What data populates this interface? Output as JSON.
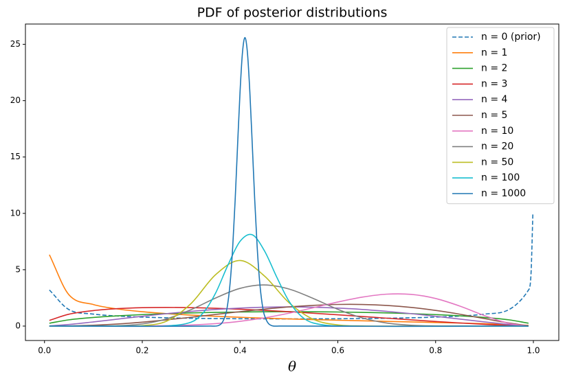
{
  "chart_data": {
    "type": "line",
    "title": "PDF of posterior distributions",
    "xlabel": "θ",
    "xlim": [
      -0.039,
      1.052
    ],
    "ylim": [
      -1.28,
      26.8
    ],
    "xticks": [
      {
        "value": 0,
        "label": "0.0"
      },
      {
        "value": 0.2,
        "label": "0.2"
      },
      {
        "value": 0.4,
        "label": "0.4"
      },
      {
        "value": 0.6,
        "label": "0.6"
      },
      {
        "value": 0.8,
        "label": "0.8"
      },
      {
        "value": 1,
        "label": "1.0"
      }
    ],
    "yticks": [
      0,
      5,
      10,
      15,
      20,
      25
    ],
    "grid": false,
    "legend": "upper right",
    "series": [
      {
        "name": "n = 0 (prior)",
        "color": "#1f77b4",
        "linestyle": "dashed",
        "x": [
          0.01,
          0.05,
          0.1,
          0.15,
          0.2,
          0.25,
          0.3,
          0.35,
          0.4,
          0.45,
          0.5,
          0.55,
          0.6,
          0.65,
          0.7,
          0.75,
          0.8,
          0.85,
          0.9,
          0.95,
          0.99,
          0.995,
          0.999
        ],
        "values": [
          3.2,
          1.461,
          1.061,
          0.891,
          0.796,
          0.735,
          0.695,
          0.667,
          0.65,
          0.64,
          0.637,
          0.64,
          0.65,
          0.667,
          0.695,
          0.735,
          0.796,
          0.891,
          1.061,
          1.461,
          3.2,
          4.51,
          10.07
        ]
      },
      {
        "name": "n = 1",
        "color": "#ff7f0e",
        "x": [
          0.01,
          0.05,
          0.1,
          0.15,
          0.2,
          0.25,
          0.3,
          0.35,
          0.4,
          0.45,
          0.5,
          0.55,
          0.6,
          0.65,
          0.7,
          0.75,
          0.8,
          0.85,
          0.9,
          0.95,
          0.99
        ],
        "values": [
          6.33,
          2.775,
          1.91,
          1.515,
          1.273,
          1.103,
          0.972,
          0.868,
          0.78,
          0.704,
          0.637,
          0.576,
          0.52,
          0.467,
          0.417,
          0.368,
          0.318,
          0.267,
          0.212,
          0.146,
          0.064
        ]
      },
      {
        "name": "n = 2",
        "color": "#2ca02c",
        "x": [
          0.01,
          0.05,
          0.1,
          0.15,
          0.2,
          0.25,
          0.3,
          0.35,
          0.4,
          0.45,
          0.5,
          0.55,
          0.6,
          0.65,
          0.7,
          0.75,
          0.8,
          0.85,
          0.9,
          0.95,
          0.99
        ],
        "values": [
          0.253,
          0.555,
          0.764,
          0.909,
          1.019,
          1.103,
          1.167,
          1.214,
          1.247,
          1.267,
          1.273,
          1.267,
          1.247,
          1.214,
          1.167,
          1.103,
          1.019,
          0.909,
          0.764,
          0.555,
          0.253
        ]
      },
      {
        "name": "n = 3",
        "color": "#d62728",
        "x": [
          0.01,
          0.05,
          0.1,
          0.15,
          0.2,
          0.25,
          0.3,
          0.35,
          0.4,
          0.45,
          0.5,
          0.55,
          0.6,
          0.65,
          0.7,
          0.75,
          0.8,
          0.85,
          0.9,
          0.95,
          0.99
        ],
        "values": [
          0.502,
          1.055,
          1.375,
          1.546,
          1.63,
          1.654,
          1.634,
          1.579,
          1.497,
          1.394,
          1.273,
          1.14,
          0.998,
          0.85,
          0.7,
          0.551,
          0.407,
          0.273,
          0.153,
          0.056,
          0.005
        ]
      },
      {
        "name": "n = 4",
        "color": "#9467bd",
        "x": [
          0.01,
          0.05,
          0.1,
          0.15,
          0.2,
          0.25,
          0.3,
          0.35,
          0.4,
          0.45,
          0.5,
          0.55,
          0.6,
          0.65,
          0.7,
          0.75,
          0.8,
          0.85,
          0.9,
          0.95,
          0.99
        ],
        "values": [
          0.013,
          0.141,
          0.367,
          0.618,
          0.869,
          1.103,
          1.306,
          1.474,
          1.597,
          1.672,
          1.698,
          1.672,
          1.597,
          1.474,
          1.306,
          1.103,
          0.869,
          0.618,
          0.367,
          0.141,
          0.013
        ]
      },
      {
        "name": "n = 5",
        "color": "#8c564b",
        "x": [
          0.01,
          0.05,
          0.1,
          0.15,
          0.2,
          0.25,
          0.3,
          0.35,
          0.4,
          0.45,
          0.5,
          0.55,
          0.6,
          0.65,
          0.7,
          0.75,
          0.8,
          0.85,
          0.9,
          0.95,
          0.99
        ],
        "values": [
          0,
          0.014,
          0.073,
          0.185,
          0.348,
          0.551,
          0.784,
          1.031,
          1.278,
          1.505,
          1.698,
          1.839,
          1.917,
          1.916,
          1.83,
          1.654,
          1.39,
          1.051,
          0.66,
          0.267,
          0.026
        ]
      },
      {
        "name": "n = 10",
        "color": "#e377c2",
        "x": [
          0.01,
          0.05,
          0.1,
          0.15,
          0.2,
          0.25,
          0.3,
          0.35,
          0.4,
          0.45,
          0.5,
          0.55,
          0.6,
          0.65,
          0.7,
          0.75,
          0.8,
          0.85,
          0.9,
          0.95,
          0.99
        ],
        "values": [
          0,
          0,
          0,
          0.002,
          0.01,
          0.035,
          0.096,
          0.216,
          0.422,
          0.729,
          1.14,
          1.627,
          2.134,
          2.571,
          2.832,
          2.811,
          2.447,
          1.768,
          0.93,
          0.234,
          0.006
        ]
      },
      {
        "name": "n = 20",
        "color": "#7f7f7f",
        "x": [
          0.01,
          0.05,
          0.1,
          0.15,
          0.2,
          0.25,
          0.3,
          0.35,
          0.4,
          0.45,
          0.5,
          0.55,
          0.6,
          0.65,
          0.7,
          0.75,
          0.8,
          0.85,
          0.9,
          0.95,
          0.99
        ],
        "values": [
          0,
          0,
          0.002,
          0.031,
          0.189,
          0.641,
          1.462,
          2.491,
          3.346,
          3.65,
          3.29,
          2.444,
          1.486,
          0.722,
          0.269,
          0.071,
          0.012,
          0.001,
          0,
          0,
          0
        ]
      },
      {
        "name": "n = 50",
        "color": "#bcbd22",
        "x": [
          0.01,
          0.15,
          0.2,
          0.25,
          0.3,
          0.35,
          0.4,
          0.45,
          0.5,
          0.55,
          0.6,
          0.65,
          0.7,
          0.99
        ],
        "values": [
          0,
          0.001,
          0.038,
          0.439,
          2.01,
          4.56,
          5.82,
          4.44,
          2.08,
          0.597,
          0.101,
          0.009,
          0,
          0
        ]
      },
      {
        "name": "n = 100",
        "color": "#17becf",
        "x": [
          0.01,
          0.2,
          0.25,
          0.3,
          0.325,
          0.35,
          0.375,
          0.4,
          0.425,
          0.45,
          0.475,
          0.5,
          0.525,
          0.55,
          0.6,
          0.99
        ],
        "values": [
          0,
          0,
          0.01,
          0.347,
          1.19,
          2.93,
          5.39,
          7.52,
          8.1,
          6.67,
          4.35,
          2.21,
          0.88,
          0.27,
          0.011,
          0
        ]
      },
      {
        "name": "n = 1000",
        "color": "#1f77b4",
        "x": [
          0.01,
          0.34,
          0.36,
          0.37,
          0.375,
          0.38,
          0.385,
          0.39,
          0.395,
          0.4,
          0.405,
          0.41,
          0.415,
          0.42,
          0.425,
          0.43,
          0.435,
          0.44,
          0.445,
          0.45,
          0.46,
          0.48,
          0.99
        ],
        "values": [
          0,
          0.001,
          0.146,
          0.94,
          2.04,
          3.98,
          7.03,
          11.2,
          16.1,
          20.8,
          24.3,
          25.6,
          24.3,
          20.8,
          16.1,
          11.2,
          7.03,
          3.98,
          2.04,
          0.94,
          0.146,
          0.001,
          0
        ]
      }
    ]
  }
}
